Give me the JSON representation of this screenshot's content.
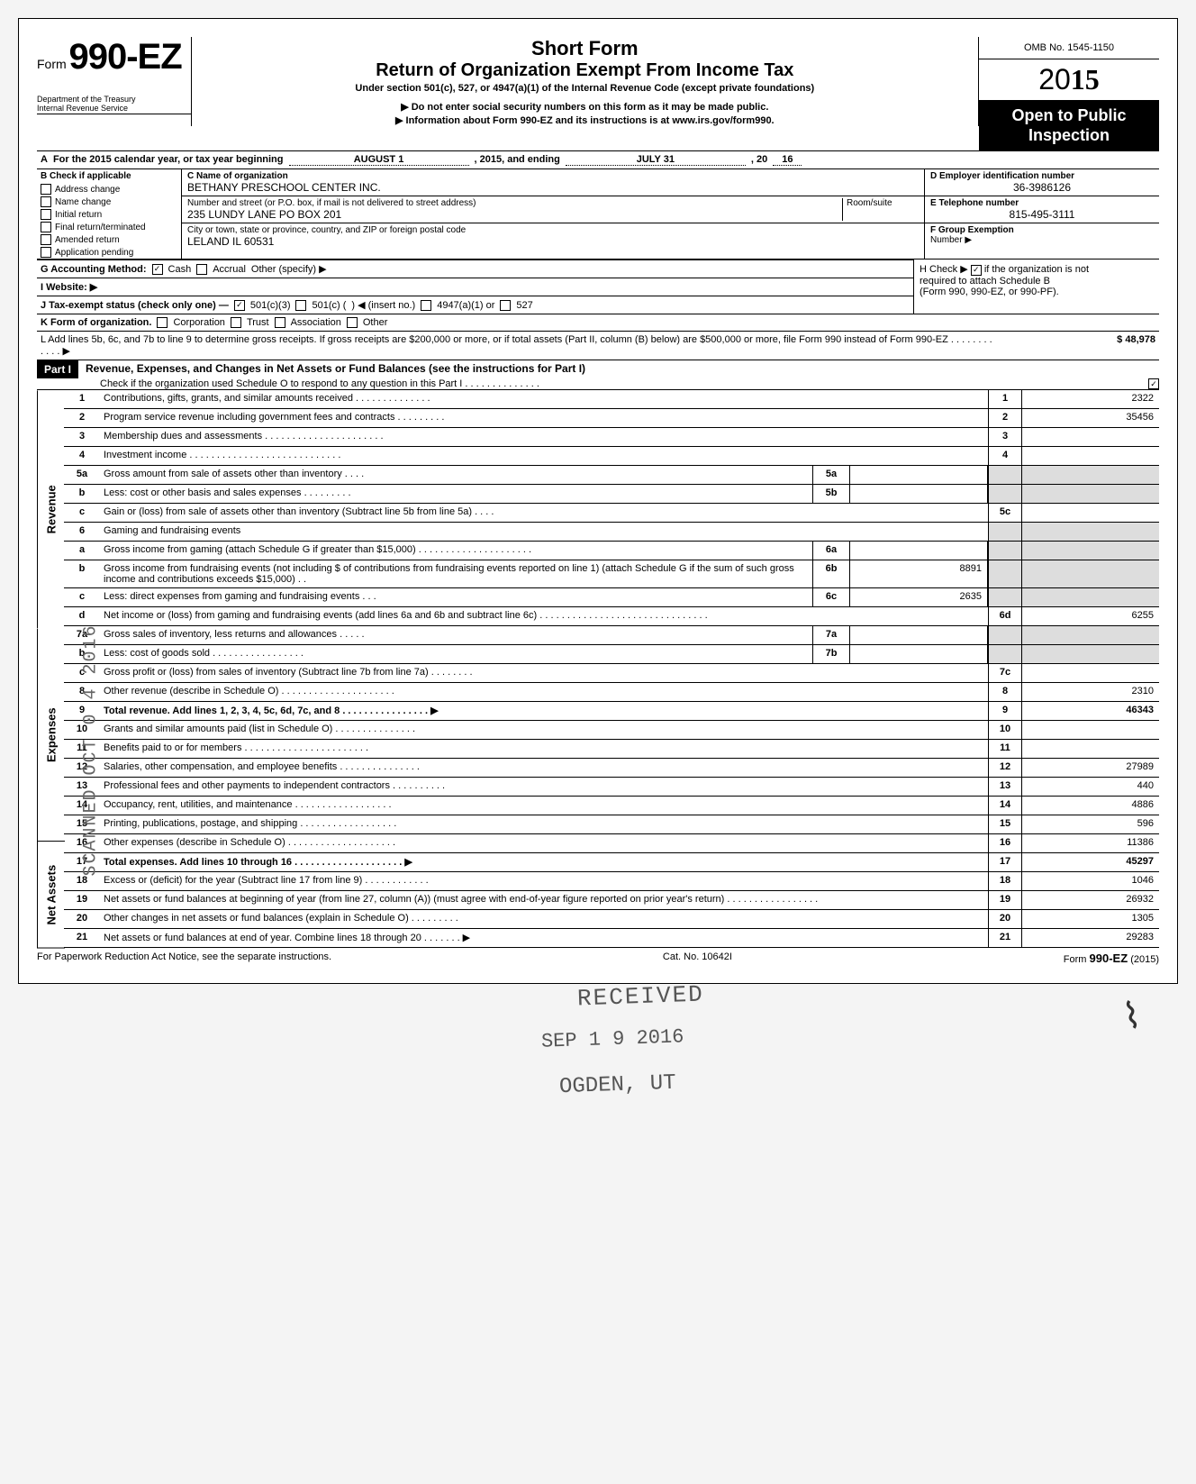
{
  "sideStamp": "SCANNED OCT 0 4 2016",
  "header": {
    "formPrefix": "Form",
    "formNumber": "990-EZ",
    "dept1": "Department of the Treasury",
    "dept2": "Internal Revenue Service",
    "title1": "Short Form",
    "title2": "Return of Organization Exempt From Income Tax",
    "subtitle": "Under section 501(c), 527, or 4947(a)(1) of the Internal Revenue Code (except private foundations)",
    "warn1": "▶ Do not enter social security numbers on this form as it may be made public.",
    "warn2": "▶ Information about Form 990-EZ and its instructions is at www.irs.gov/form990.",
    "omb": "OMB No. 1545-1150",
    "year": "2015",
    "public1": "Open to Public",
    "public2": "Inspection"
  },
  "A": {
    "text1": "For the 2015 calendar year, or tax year beginning",
    "begin": "AUGUST 1",
    "text2": ", 2015, and ending",
    "end": "JULY 31",
    "text3": ", 20",
    "endYr": "16"
  },
  "B": {
    "label": "B  Check if applicable",
    "opts": [
      "Address change",
      "Name change",
      "Initial return",
      "Final return/terminated",
      "Amended return",
      "Application pending"
    ]
  },
  "C": {
    "nameLabel": "C  Name of organization",
    "name": "BETHANY PRESCHOOL CENTER INC.",
    "addrLabel": "Number and street (or P.O. box, if mail is not delivered to street address)",
    "roomLabel": "Room/suite",
    "addr": "235 LUNDY LANE PO BOX 201",
    "cityLabel": "City or town, state or province, country, and ZIP or foreign postal code",
    "city": "LELAND IL 60531"
  },
  "D": {
    "label": "D Employer identification number",
    "val": "36-3986126"
  },
  "E": {
    "label": "E Telephone number",
    "val": "815-495-3111"
  },
  "F": {
    "label": "F Group Exemption",
    "label2": "Number ▶",
    "val": ""
  },
  "G": {
    "label": "G  Accounting Method:",
    "cash": "Cash",
    "accrual": "Accrual",
    "other": "Other (specify) ▶"
  },
  "H": {
    "text1": "H  Check ▶",
    "text2": "if the organization is not",
    "text3": "required to attach Schedule B",
    "text4": "(Form 990, 990-EZ, or 990-PF)."
  },
  "I": {
    "label": "I  Website: ▶"
  },
  "J": {
    "label": "J  Tax-exempt status (check only one) —",
    "a": "501(c)(3)",
    "b": "501(c) (",
    "b2": ")  ◀ (insert no.)",
    "c": "4947(a)(1) or",
    "d": "527"
  },
  "K": {
    "label": "K  Form of organization.",
    "opts": [
      "Corporation",
      "Trust",
      "Association",
      "Other"
    ]
  },
  "L": {
    "text": "L  Add lines 5b, 6c, and 7b to line 9 to determine gross receipts. If gross receipts are $200,000 or more, or if total assets (Part II, column (B) below) are $500,000 or more, file Form 990 instead of Form 990-EZ .  .  .  .  .  .  .  .  .  .  .  .  ▶",
    "amt": "48,978"
  },
  "part1": {
    "tag": "Part I",
    "title": "Revenue, Expenses, and Changes in Net Assets or Fund Balances (see the instructions for Part I)",
    "check": "Check if the organization used Schedule O to respond to any question in this Part I .  .  .  .  .  .  .  .  .  .  .  .  .  ."
  },
  "rows": {
    "r1": {
      "n": "1",
      "d": "Contributions, gifts, grants, and similar amounts received .  .  .  .  .  .  .  .  .  .  .  .  .  .",
      "en": "1",
      "v": "2322"
    },
    "r2": {
      "n": "2",
      "d": "Program service revenue including government fees and contracts  .  .  .  .  .  .  .  .  .",
      "en": "2",
      "v": "35456"
    },
    "r3": {
      "n": "3",
      "d": "Membership dues and assessments .  .  .  .  .  .  .  .  .  .  .  .  .  .  .  .  .  .  .  .  .  .",
      "en": "3",
      "v": ""
    },
    "r4": {
      "n": "4",
      "d": "Investment income  .  .  .  .  .  .  .  .  .  .  .  .  .  .  .  .  .  .  .  .  .  .  .  .  .  .  .  .",
      "en": "4",
      "v": ""
    },
    "r5a": {
      "n": "5a",
      "d": "Gross amount from sale of assets other than inventory  .  .  .  .",
      "mb": "5a",
      "mv": ""
    },
    "r5b": {
      "n": "b",
      "d": "Less: cost or other basis and sales expenses .  .  .  .  .  .  .  .  .",
      "mb": "5b",
      "mv": ""
    },
    "r5c": {
      "n": "c",
      "d": "Gain or (loss) from sale of assets other than inventory (Subtract line 5b from line 5a) .  .  .  .",
      "en": "5c",
      "v": ""
    },
    "r6": {
      "n": "6",
      "d": "Gaming and fundraising events"
    },
    "r6a": {
      "n": "a",
      "d": "Gross income from gaming (attach Schedule G if greater than $15,000) .  .  .  .  .  .  .  .  .  .  .  .  .  .  .  .  .  .  .  .  .",
      "mb": "6a",
      "mv": ""
    },
    "r6b": {
      "n": "b",
      "d": "Gross income from fundraising events (not including  $                        of contributions from fundraising events reported on line 1) (attach Schedule G if the sum of such gross income and contributions exceeds $15,000) .  .",
      "mb": "6b",
      "mv": "8891"
    },
    "r6c": {
      "n": "c",
      "d": "Less: direct expenses from gaming and fundraising events  .  .  .",
      "mb": "6c",
      "mv": "2635"
    },
    "r6d": {
      "n": "d",
      "d": "Net income or (loss) from gaming and fundraising events (add lines 6a and 6b and subtract line 6c)  .  .  .  .  .  .  .  .  .  .  .  .  .  .  .  .  .  .  .  .  .  .  .  .  .  .  .  .  .  .  .",
      "en": "6d",
      "v": "6255"
    },
    "r7a": {
      "n": "7a",
      "d": "Gross sales of inventory, less returns and allowances  .  .  .  .  .",
      "mb": "7a",
      "mv": ""
    },
    "r7b": {
      "n": "b",
      "d": "Less: cost of goods sold  .  .  .  .  .  .  .  .  .  .  .  .  .  .  .  .  .",
      "mb": "7b",
      "mv": ""
    },
    "r7c": {
      "n": "c",
      "d": "Gross profit or (loss) from sales of inventory (Subtract line 7b from line 7a) .  .  .  .  .  .  .  .",
      "en": "7c",
      "v": ""
    },
    "r8": {
      "n": "8",
      "d": "Other revenue (describe in Schedule O) .  .  .  .  .  .  .  .  .  .  .  .  .  .  .  .  .  .  .  .  .",
      "en": "8",
      "v": "2310"
    },
    "r9": {
      "n": "9",
      "d": "Total revenue. Add lines 1, 2, 3, 4, 5c, 6d, 7c, and 8  .  .  .  .  .  .  .  .  .  .  .  .  .  .  .  . ▶",
      "en": "9",
      "v": "46343"
    },
    "r10": {
      "n": "10",
      "d": "Grants and similar amounts paid (list in Schedule O)  .  .  .  .  .  .  .  .  .  .  .  .  .  .  .",
      "en": "10",
      "v": ""
    },
    "r11": {
      "n": "11",
      "d": "Benefits paid to or for members .  .  .  .  .  .  .  .  .  .  .  .  .  .  .  .  .  .  .  .  .  .  .",
      "en": "11",
      "v": ""
    },
    "r12": {
      "n": "12",
      "d": "Salaries, other compensation, and employee benefits .  .  .  .  .  .  .  .  .  .  .  .  .  .  .",
      "en": "12",
      "v": "27989"
    },
    "r13": {
      "n": "13",
      "d": "Professional fees and other payments to independent contractors .  .  .  .  .  .  .  .  .  .",
      "en": "13",
      "v": "440"
    },
    "r14": {
      "n": "14",
      "d": "Occupancy, rent, utilities, and maintenance  .  .  .  .  .  .  .  .  .  .  .  .  .  .  .  .  .  .",
      "en": "14",
      "v": "4886"
    },
    "r15": {
      "n": "15",
      "d": "Printing, publications, postage, and shipping .  .  .  .  .  .  .  .  .  .  .  .  .  .  .  .  .  .",
      "en": "15",
      "v": "596"
    },
    "r16": {
      "n": "16",
      "d": "Other expenses (describe in Schedule O) .  .  .  .  .  .  .  .  .  .  .  .  .  .  .  .  .  .  .  .",
      "en": "16",
      "v": "11386"
    },
    "r17": {
      "n": "17",
      "d": "Total expenses. Add lines 10 through 16 .  .  .  .  .  .  .  .  .  .  .  .  .  .  .  .  .  .  .  . ▶",
      "en": "17",
      "v": "45297"
    },
    "r18": {
      "n": "18",
      "d": "Excess or (deficit) for the year (Subtract line 17 from line 9)  .  .  .  .  .  .  .  .  .  .  .  .",
      "en": "18",
      "v": "1046"
    },
    "r19": {
      "n": "19",
      "d": "Net assets or fund balances at beginning of year (from line 27, column (A)) (must agree with end-of-year figure reported on prior year's return)  .  .  .  .  .  .  .  .  .  .  .  .  .  .  .  .  .",
      "en": "19",
      "v": "26932"
    },
    "r20": {
      "n": "20",
      "d": "Other changes in net assets or fund balances (explain in Schedule O) .  .  .  .  .  .  .  .  .",
      "en": "20",
      "v": "1305"
    },
    "r21": {
      "n": "21",
      "d": "Net assets or fund balances at end of year. Combine lines 18 through 20  .  .  .  .  .  .  . ▶",
      "en": "21",
      "v": "29283"
    }
  },
  "sideLabels": {
    "rev": "Revenue",
    "exp": "Expenses",
    "net": "Net Assets"
  },
  "footer": {
    "left": "For Paperwork Reduction Act Notice, see the separate instructions.",
    "mid": "Cat. No. 10642I",
    "right1": "Form ",
    "right2": "990-EZ",
    "right3": " (2015)"
  },
  "stamps": {
    "s1": "RECEIVED",
    "s2": "SEP 1 9 2016",
    "s3": "OGDEN, UT"
  }
}
